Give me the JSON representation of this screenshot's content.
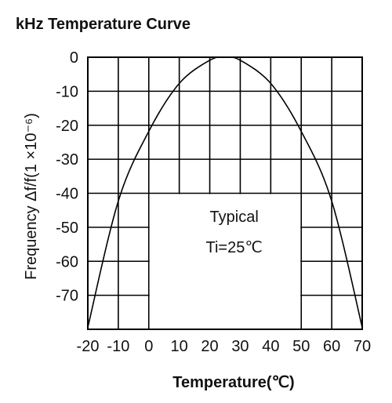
{
  "title": "kHz Temperature Curve",
  "chart_data": {
    "type": "line",
    "xlabel": "Temperature(℃)",
    "ylabel": "Frequency Δf/f(1 ×10⁻⁶)",
    "xlim": [
      -20,
      70
    ],
    "ylim": [
      -80,
      0
    ],
    "xticks": [
      "-20",
      "-10",
      "0",
      "10",
      "20",
      "30",
      "40",
      "50",
      "60",
      "70"
    ],
    "yticks": [
      "0",
      "-10",
      "-20",
      "-30",
      "-40",
      "-50",
      "-60",
      "-70"
    ],
    "grid": true,
    "annotation": [
      "Typical",
      "Ti=25℃"
    ],
    "series": [
      {
        "x": [
          -20,
          -10,
          0,
          10,
          20,
          25,
          30,
          40,
          50,
          60,
          70
        ],
        "y": [
          -79.4,
          -42.3,
          -21.8,
          -7.7,
          -0.9,
          0,
          -0.9,
          -7.7,
          -21.8,
          -42.3,
          -79.4
        ]
      }
    ],
    "colors": {
      "line": "#000000",
      "grid": "#000000"
    }
  }
}
